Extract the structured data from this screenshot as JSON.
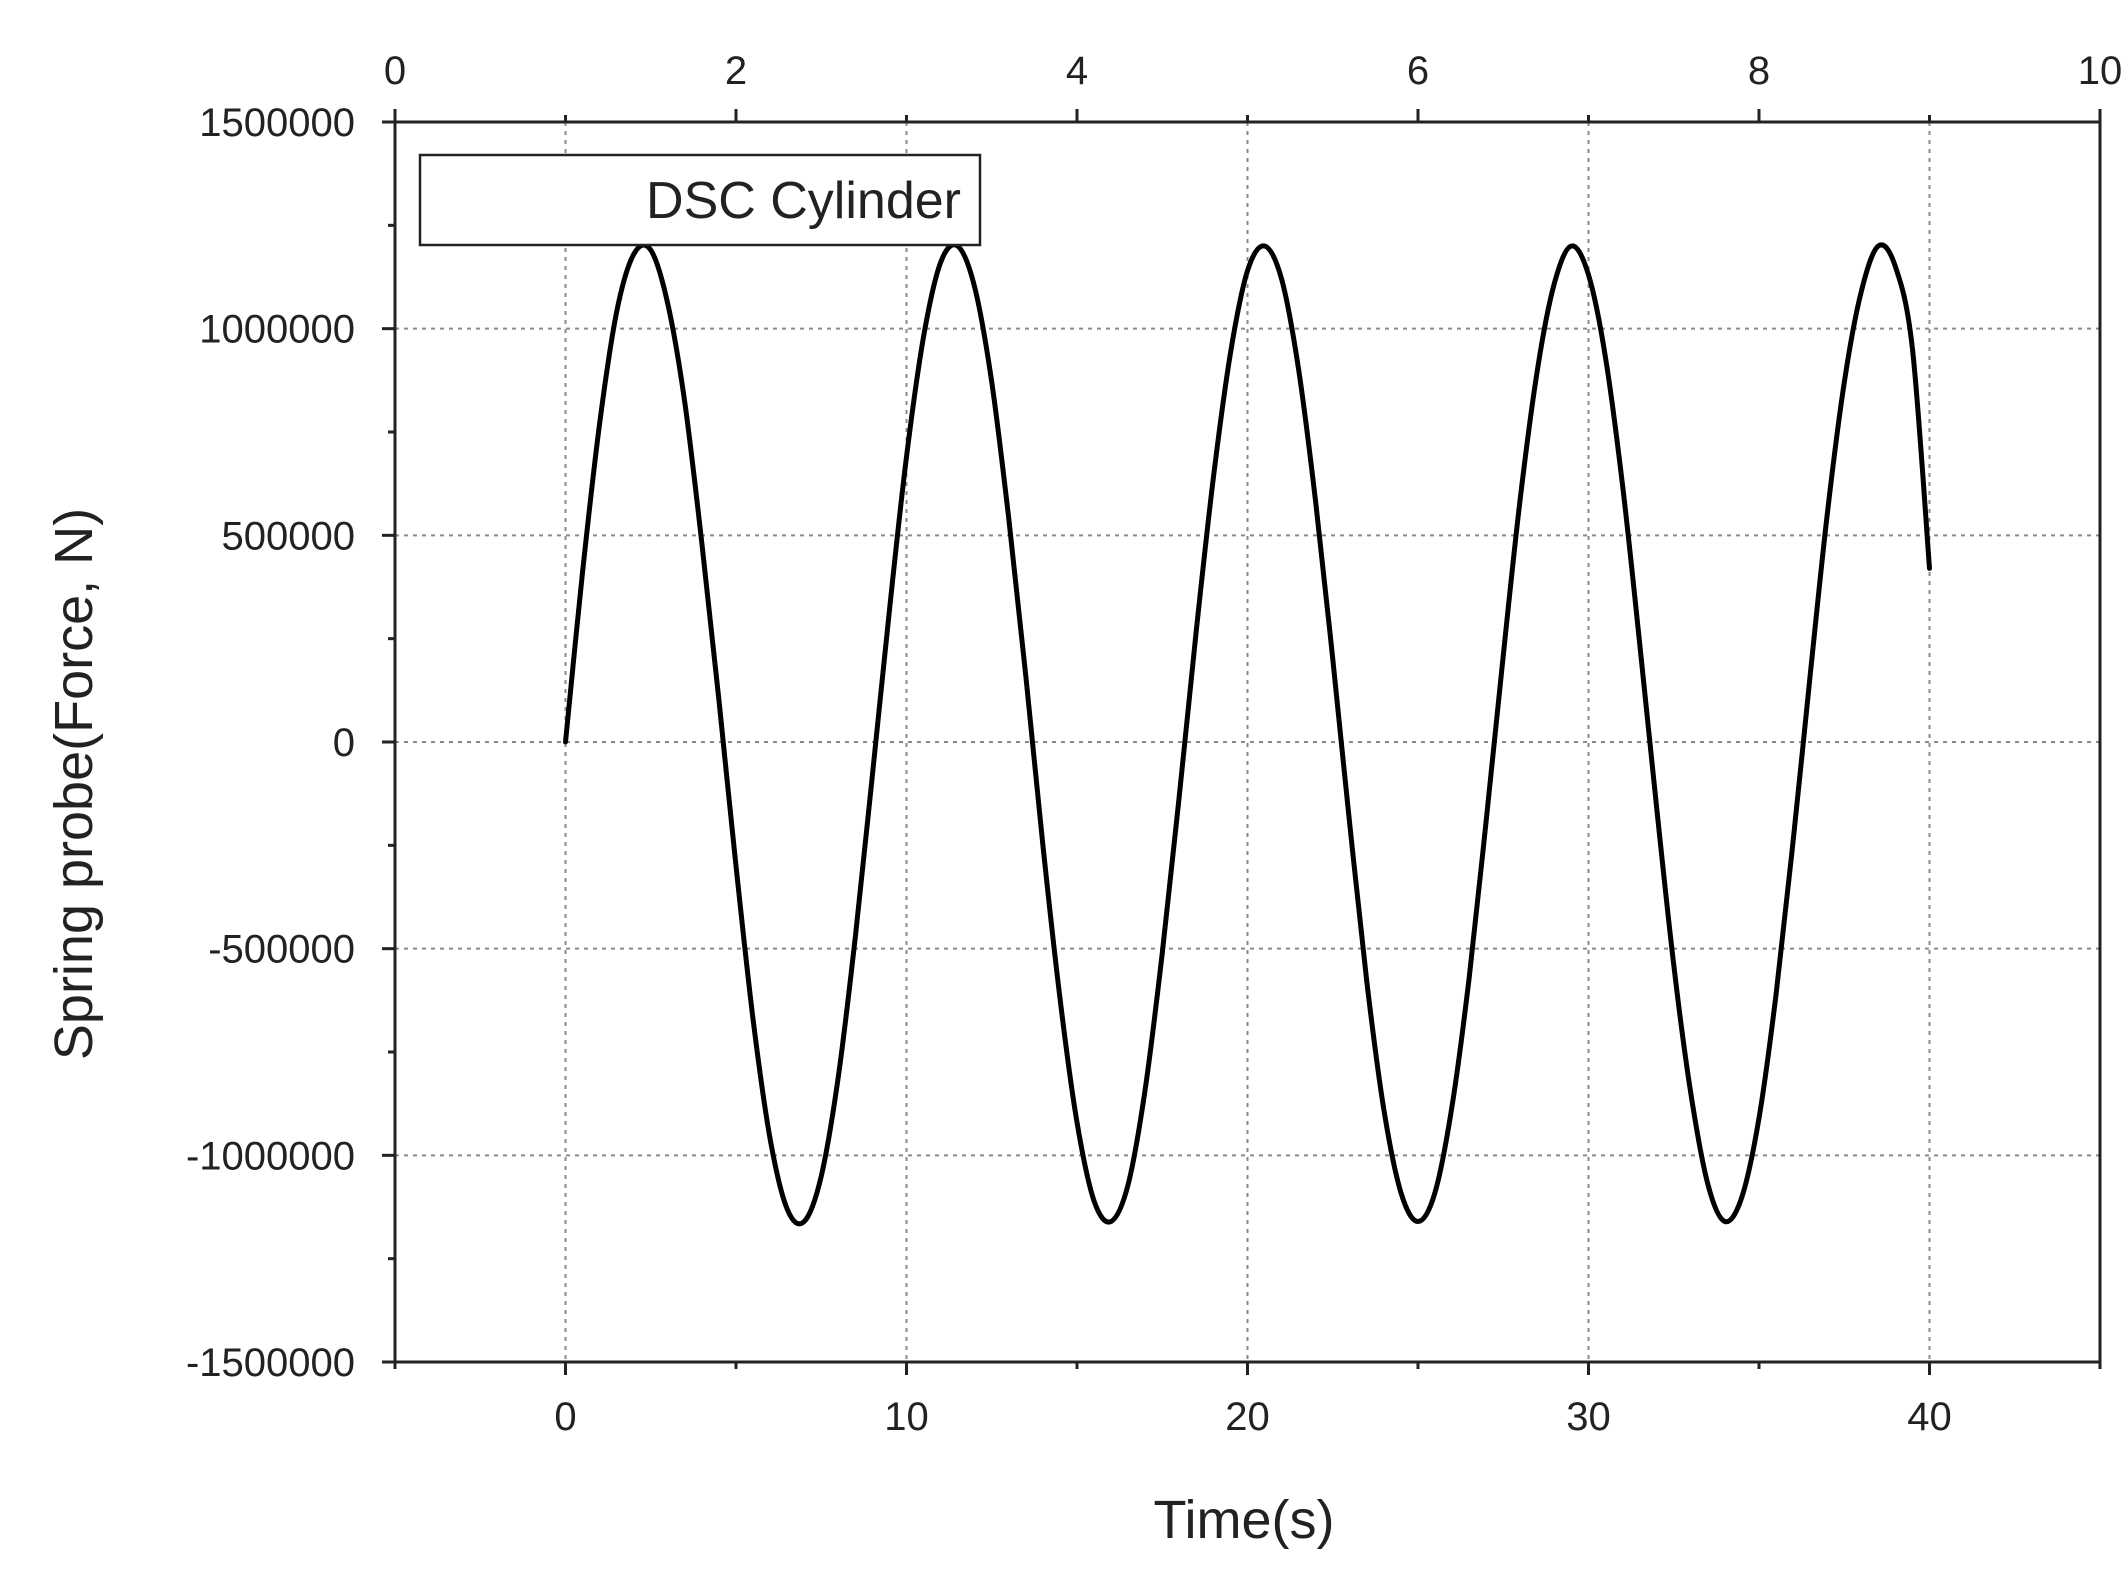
{
  "chart_data": {
    "type": "line",
    "title": "",
    "xlabel": "Time(s)",
    "ylabel": "Spring probe(Force, N)",
    "xlim": [
      -5,
      45
    ],
    "ylim": [
      -1500000,
      1500000
    ],
    "x_ticks": [
      0,
      10,
      20,
      30,
      40
    ],
    "x_tick_labels": [
      "0",
      "10",
      "20",
      "30",
      "40"
    ],
    "x2_ticks": [
      0,
      2,
      4,
      6,
      8,
      10
    ],
    "x2_tick_labels": [
      "0",
      "2",
      "4",
      "6",
      "8",
      "10"
    ],
    "y_ticks": [
      1500000,
      1000000,
      500000,
      0,
      -500000,
      -1000000,
      -1500000
    ],
    "y_tick_labels": [
      "1500000",
      "1000000",
      "500000",
      "0",
      "-500000",
      "-1000000",
      "-1500000"
    ],
    "grid": true,
    "grid_x": [
      0,
      10,
      20,
      30,
      40
    ],
    "grid_y": [
      1000000,
      500000,
      0,
      -500000,
      -1000000
    ],
    "legend_position": "top-left",
    "series": [
      {
        "name": "DSC Cylinder",
        "color": "#000000",
        "x": [
          0,
          0.5,
          1,
          1.5,
          2.0,
          2.5,
          3,
          3.5,
          4.0,
          4.5,
          5,
          5.5,
          6,
          6.5,
          7,
          7.5,
          8,
          8.5,
          9,
          9.5,
          10,
          10.5,
          11,
          11.5,
          12,
          12.5,
          13,
          13.5,
          14,
          14.5,
          15,
          15.5,
          16,
          16.5,
          17,
          17.5,
          18,
          18.5,
          19,
          19.5,
          20,
          20.5,
          21,
          21.5,
          22,
          22.5,
          23,
          23.5,
          24,
          24.5,
          25,
          25.5,
          26,
          26.5,
          27,
          27.5,
          28,
          28.5,
          29,
          29.5,
          30,
          30.5,
          31,
          31.5,
          32,
          32.5,
          33,
          33.5,
          34,
          34.5,
          35,
          35.5,
          36,
          36.5,
          37,
          37.5,
          38,
          38.5,
          39,
          39.5,
          40
        ],
        "y": [
          0,
          410000,
          770000,
          1040000,
          1180000,
          1190000,
          1060000,
          820000,
          480000,
          100000,
          -300000,
          -670000,
          -960000,
          -1130000,
          -1160000,
          -1050000,
          -810000,
          -470000,
          -80000,
          320000,
          690000,
          980000,
          1160000,
          1200000,
          1100000,
          870000,
          540000,
          160000,
          -250000,
          -620000,
          -920000,
          -1110000,
          -1160000,
          -1070000,
          -840000,
          -510000,
          -130000,
          270000,
          640000,
          940000,
          1140000,
          1200000,
          1120000,
          900000,
          580000,
          200000,
          -200000,
          -580000,
          -890000,
          -1090000,
          -1160000,
          -1090000,
          -880000,
          -570000,
          -190000,
          210000,
          590000,
          900000,
          1110000,
          1200000,
          1130000,
          930000,
          620000,
          240000,
          -160000,
          -540000,
          -850000,
          -1070000,
          -1160000,
          -1100000,
          -910000,
          -610000,
          -240000,
          160000,
          550000,
          870000,
          1090000,
          1200000,
          1150000,
          950000,
          420000
        ]
      }
    ]
  }
}
